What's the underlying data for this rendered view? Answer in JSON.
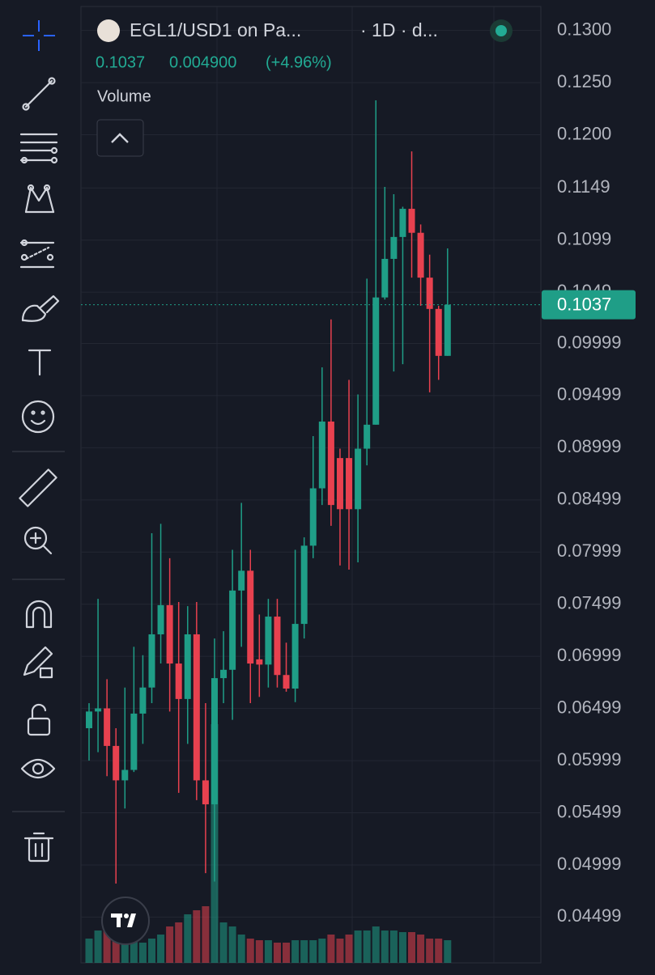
{
  "chart_data": {
    "type": "candlestick",
    "legend": {
      "symbol": "EGL1/USD1 on Pa...",
      "interval": "· 1D · d...",
      "close": 0.1037,
      "change": "0.004900",
      "change_percent": "(+4.96%)"
    },
    "volume_label": "Volume",
    "up_color": "#1f9e87",
    "down_color": "#e8414f",
    "open": [
      0.0631,
      0.0647,
      0.065,
      0.0614,
      0.0581,
      0.0591,
      0.0645,
      0.067,
      0.0721,
      0.0749,
      0.0693,
      0.0659,
      0.0721,
      0.0581,
      0.0558,
      0.0679,
      0.0687,
      0.0763,
      0.0782,
      0.0697,
      0.0692,
      0.0738,
      0.0682,
      0.0669,
      0.0731,
      0.0806,
      0.0861,
      0.0925,
      0.089,
      0.089,
      0.0841,
      0.0899,
      0.0922,
      0.1044,
      0.1081,
      0.1102,
      0.1129,
      0.1106,
      0.1063,
      0.1033,
      0.0988
    ],
    "high": [
      0.0655,
      0.0755,
      0.0678,
      0.0631,
      0.067,
      0.0709,
      0.0701,
      0.0818,
      0.0827,
      0.0794,
      0.0752,
      0.0748,
      0.0752,
      0.0655,
      0.0717,
      0.0724,
      0.0802,
      0.0847,
      0.0802,
      0.074,
      0.0755,
      0.0755,
      0.0713,
      0.0802,
      0.0814,
      0.0911,
      0.0977,
      0.1023,
      0.0899,
      0.0965,
      0.0951,
      0.1062,
      0.1233,
      0.115,
      0.1143,
      0.1131,
      0.1184,
      0.1114,
      0.1085,
      0.1036,
      0.1091
    ],
    "low": [
      0.06,
      0.0608,
      0.0585,
      0.0482,
      0.0554,
      0.0589,
      0.0616,
      0.0655,
      0.0693,
      0.0647,
      0.0569,
      0.0616,
      0.0562,
      0.0492,
      0.0484,
      0.0655,
      0.0639,
      0.0709,
      0.0655,
      0.0661,
      0.067,
      0.067,
      0.0666,
      0.0656,
      0.0717,
      0.0794,
      0.0845,
      0.0825,
      0.0787,
      0.0783,
      0.079,
      0.0883,
      0.0922,
      0.1042,
      0.0973,
      0.098,
      0.1063,
      0.1036,
      0.0953,
      0.0965,
      0.0988
    ],
    "close": [
      0.0647,
      0.065,
      0.0614,
      0.0581,
      0.0591,
      0.0645,
      0.067,
      0.0721,
      0.0749,
      0.0693,
      0.0659,
      0.0721,
      0.0581,
      0.0558,
      0.0679,
      0.0687,
      0.0763,
      0.0782,
      0.0693,
      0.0692,
      0.0738,
      0.0682,
      0.0669,
      0.0731,
      0.0806,
      0.0861,
      0.0925,
      0.0845,
      0.0841,
      0.0841,
      0.0899,
      0.0922,
      0.1044,
      0.1081,
      0.1102,
      0.1129,
      0.1106,
      0.1063,
      0.1033,
      0.0988,
      0.1037
    ],
    "volume": [
      30,
      40,
      60,
      50,
      45,
      30,
      25,
      30,
      35,
      45,
      50,
      60,
      65,
      70,
      295,
      50,
      45,
      35,
      30,
      28,
      28,
      25,
      25,
      28,
      28,
      28,
      30,
      35,
      30,
      35,
      40,
      40,
      45,
      40,
      40,
      38,
      38,
      35,
      30,
      30,
      28
    ],
    "last_price": 0.1037,
    "ylim": [
      0.0406,
      0.1323
    ],
    "yticks": [
      {
        "value": 0.13,
        "label": "0.1300"
      },
      {
        "value": 0.125,
        "label": "0.1250"
      },
      {
        "value": 0.12,
        "label": "0.1200"
      },
      0.1149,
      0.1099,
      0.1049,
      0.09999,
      0.09499,
      0.08999,
      0.08499,
      0.07999,
      0.07499,
      0.06999,
      0.06499,
      0.05999,
      0.05499,
      0.04999,
      0.04499
    ],
    "grid": true
  }
}
